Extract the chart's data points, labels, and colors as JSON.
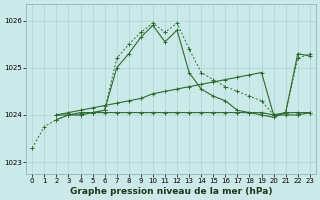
{
  "xlabel": "Graphe pression niveau de la mer (hPa)",
  "ylim": [
    1022.75,
    1026.35
  ],
  "xlim": [
    -0.5,
    23.5
  ],
  "yticks": [
    1023,
    1024,
    1025,
    1026
  ],
  "xticks": [
    0,
    1,
    2,
    3,
    4,
    5,
    6,
    7,
    8,
    9,
    10,
    11,
    12,
    13,
    14,
    15,
    16,
    17,
    18,
    19,
    20,
    21,
    22,
    23
  ],
  "bg_color": "#cce9e9",
  "grid_color": "#aad4d4",
  "line_color": "#2d6a2d",
  "series": [
    {
      "x": [
        0,
        1,
        2,
        3,
        4,
        5,
        6,
        7,
        8,
        9,
        10,
        11,
        12,
        13,
        14,
        15,
        16,
        17,
        18,
        19,
        20,
        21,
        22,
        23
      ],
      "y": [
        1023.3,
        1023.75,
        1023.9,
        1024.0,
        1024.0,
        1024.05,
        1024.1,
        1025.2,
        1025.5,
        1025.75,
        1025.95,
        1025.75,
        1025.95,
        1025.4,
        1024.9,
        1024.75,
        1024.6,
        1024.5,
        1024.4,
        1024.3,
        1024.0,
        1024.05,
        1025.2,
        1025.3
      ],
      "style": "dotted"
    },
    {
      "x": [
        2,
        3,
        4,
        5,
        6,
        7,
        8,
        9,
        10,
        11,
        12,
        13,
        14,
        15,
        16,
        17,
        18,
        19,
        20,
        21,
        22,
        23
      ],
      "y": [
        1023.9,
        1024.0,
        1024.0,
        1024.05,
        1024.1,
        1025.0,
        1025.3,
        1025.65,
        1025.9,
        1025.55,
        1025.8,
        1024.9,
        1024.55,
        1024.4,
        1024.3,
        1024.1,
        1024.05,
        1024.0,
        1023.95,
        1024.05,
        1024.05,
        1024.05
      ],
      "style": "solid"
    },
    {
      "x": [
        2,
        3,
        4,
        5,
        6,
        7,
        8,
        9,
        10,
        11,
        12,
        13,
        14,
        15,
        16,
        17,
        18,
        19,
        20,
        21,
        22,
        23
      ],
      "y": [
        1024.0,
        1024.05,
        1024.1,
        1024.15,
        1024.2,
        1024.25,
        1024.3,
        1024.35,
        1024.45,
        1024.5,
        1024.55,
        1024.6,
        1024.65,
        1024.7,
        1024.75,
        1024.8,
        1024.85,
        1024.9,
        1024.0,
        1024.05,
        1025.3,
        1025.25
      ],
      "style": "solid"
    },
    {
      "x": [
        2,
        3,
        4,
        5,
        6,
        7,
        8,
        9,
        10,
        11,
        12,
        13,
        14,
        15,
        16,
        17,
        18,
        19,
        20,
        21,
        22,
        23
      ],
      "y": [
        1024.0,
        1024.0,
        1024.05,
        1024.05,
        1024.05,
        1024.05,
        1024.05,
        1024.05,
        1024.05,
        1024.05,
        1024.05,
        1024.05,
        1024.05,
        1024.05,
        1024.05,
        1024.05,
        1024.05,
        1024.05,
        1024.0,
        1024.0,
        1024.0,
        1024.05
      ],
      "style": "solid"
    }
  ]
}
